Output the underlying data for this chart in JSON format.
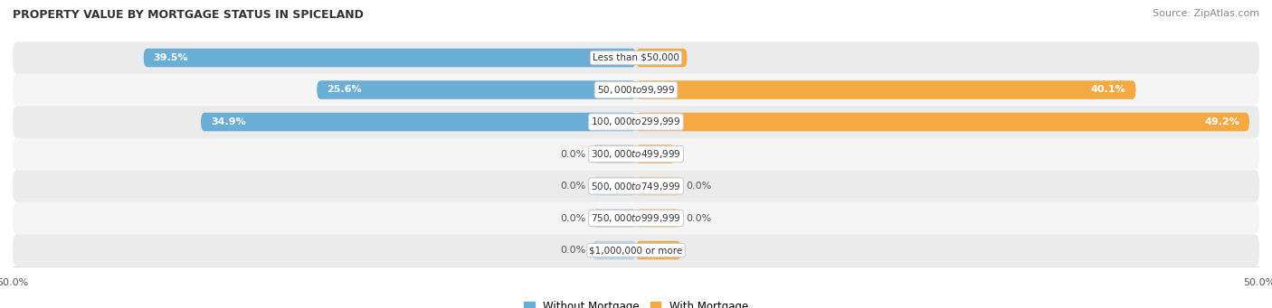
{
  "title": "PROPERTY VALUE BY MORTGAGE STATUS IN SPICELAND",
  "source": "Source: ZipAtlas.com",
  "categories": [
    "Less than $50,000",
    "$50,000 to $99,999",
    "$100,000 to $299,999",
    "$300,000 to $499,999",
    "$500,000 to $749,999",
    "$750,000 to $999,999",
    "$1,000,000 or more"
  ],
  "without_mortgage": [
    39.5,
    25.6,
    34.9,
    0.0,
    0.0,
    0.0,
    0.0
  ],
  "with_mortgage": [
    4.1,
    40.1,
    49.2,
    3.1,
    0.0,
    0.0,
    3.6
  ],
  "without_mortgage_color": "#6aaed6",
  "with_mortgage_color": "#f4a942",
  "without_mortgage_color_light": "#b8d4ea",
  "with_mortgage_color_light": "#f5ca9a",
  "row_bg_odd": "#ebebeb",
  "row_bg_even": "#f5f5f5",
  "xlim": 50.0,
  "label_fontsize": 8,
  "title_fontsize": 9,
  "source_fontsize": 8,
  "legend_fontsize": 8.5,
  "category_fontsize": 7.5,
  "value_fontsize": 8,
  "figsize": [
    14.06,
    3.41
  ],
  "dpi": 100
}
